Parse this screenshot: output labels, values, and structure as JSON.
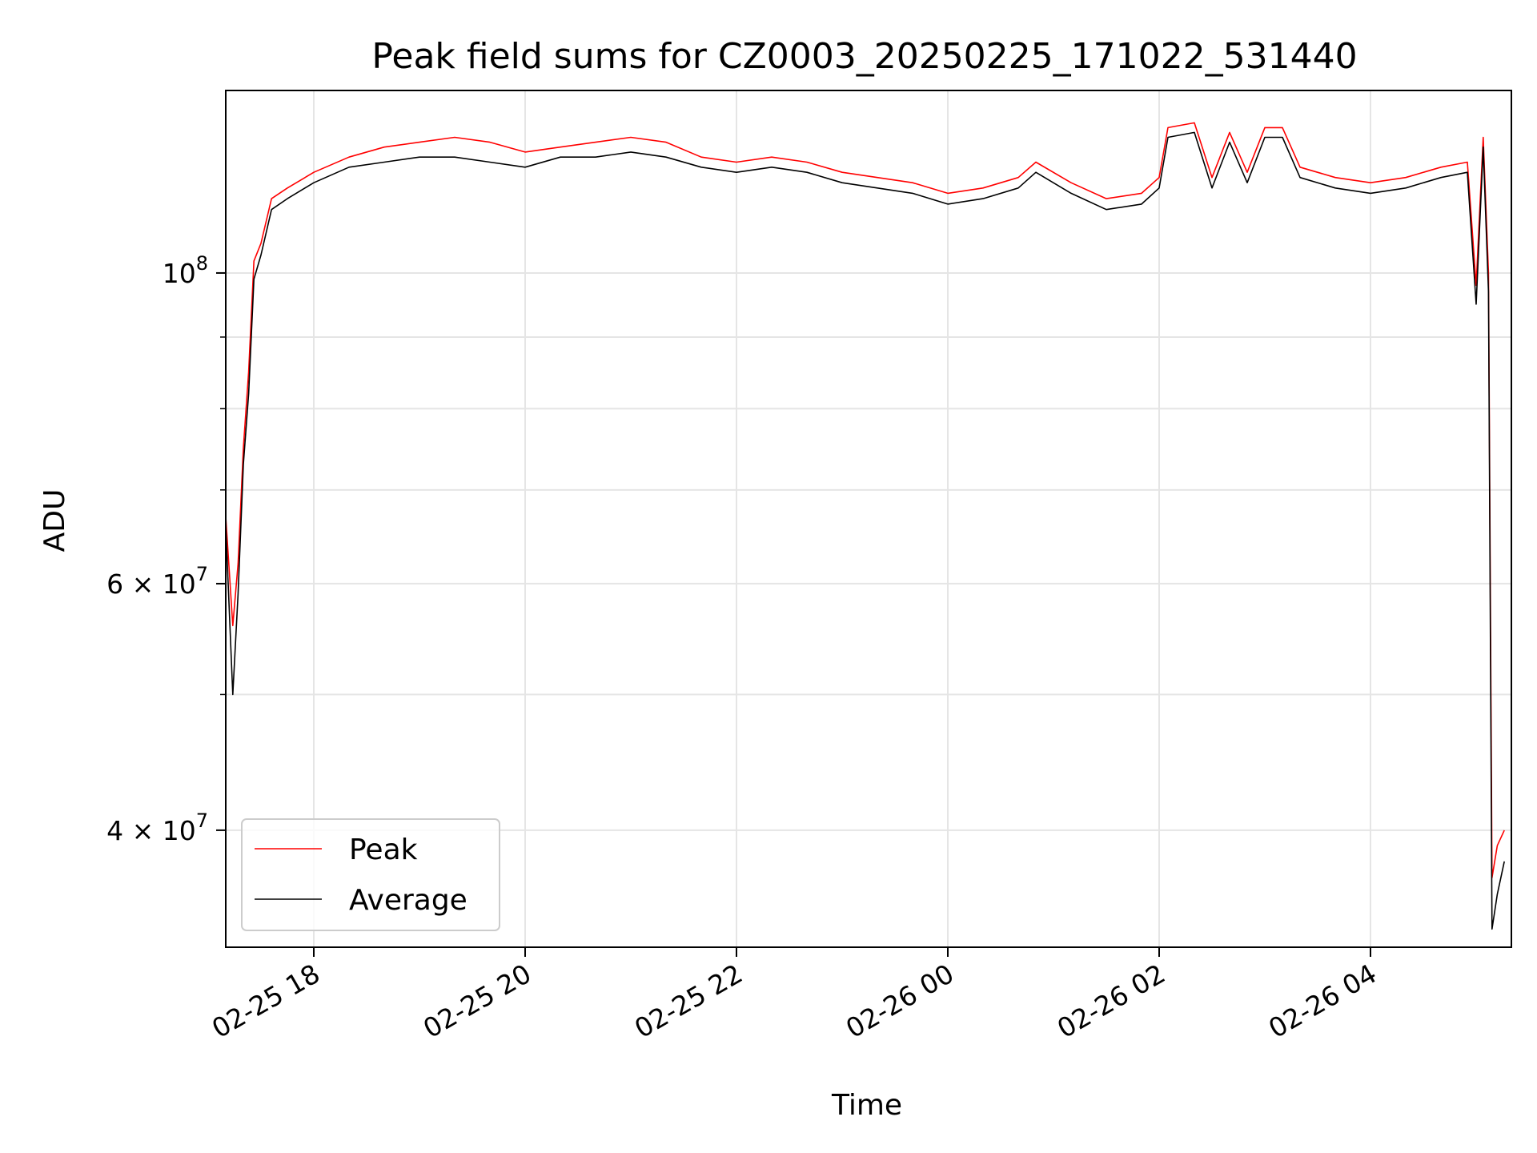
{
  "chart_data": {
    "type": "line",
    "title": "Peak field sums for CZ0003_20250225_171022_531440",
    "xlabel": "Time",
    "ylabel": "ADU",
    "y_scale": "log",
    "ylim": [
      33000000,
      135000000
    ],
    "xlim": [
      "2025-02-25 17:10",
      "2025-02-26 05:20"
    ],
    "grid": true,
    "legend_position": "lower-left",
    "x_ticks": [
      {
        "value": "2025-02-25 18:00",
        "label": "02-25 18"
      },
      {
        "value": "2025-02-25 20:00",
        "label": "02-25 20"
      },
      {
        "value": "2025-02-25 22:00",
        "label": "02-25 22"
      },
      {
        "value": "2025-02-26 00:00",
        "label": "02-26 00"
      },
      {
        "value": "2025-02-26 02:00",
        "label": "02-26 02"
      },
      {
        "value": "2025-02-26 04:00",
        "label": "02-26 04"
      }
    ],
    "y_ticks": [
      {
        "value": 100000000,
        "base": "10",
        "exp": "8"
      },
      {
        "value": 60000000,
        "base": "6 × 10",
        "exp": "7"
      },
      {
        "value": 40000000,
        "base": "4 × 10",
        "exp": "7"
      }
    ],
    "y_minor_ticks": [
      50000000,
      70000000,
      80000000,
      90000000
    ],
    "colors": {
      "peak": "#ff0000",
      "average": "#000000",
      "grid": "#e5e5e5"
    },
    "series": [
      {
        "name": "Peak",
        "color": "#ff0000",
        "points": [
          [
            "2025-02-25 17:10",
            67000000
          ],
          [
            "2025-02-25 17:14",
            56000000
          ],
          [
            "2025-02-25 17:17",
            62000000
          ],
          [
            "2025-02-25 17:20",
            75000000
          ],
          [
            "2025-02-25 17:23",
            85000000
          ],
          [
            "2025-02-25 17:26",
            102000000
          ],
          [
            "2025-02-25 17:30",
            105000000
          ],
          [
            "2025-02-25 17:36",
            113000000
          ],
          [
            "2025-02-25 17:45",
            115000000
          ],
          [
            "2025-02-25 18:00",
            118000000
          ],
          [
            "2025-02-25 18:20",
            121000000
          ],
          [
            "2025-02-25 18:40",
            123000000
          ],
          [
            "2025-02-25 19:00",
            124000000
          ],
          [
            "2025-02-25 19:20",
            125000000
          ],
          [
            "2025-02-25 19:40",
            124000000
          ],
          [
            "2025-02-25 20:00",
            122000000
          ],
          [
            "2025-02-25 20:20",
            123000000
          ],
          [
            "2025-02-25 20:40",
            124000000
          ],
          [
            "2025-02-25 21:00",
            125000000
          ],
          [
            "2025-02-25 21:20",
            124000000
          ],
          [
            "2025-02-25 21:40",
            121000000
          ],
          [
            "2025-02-25 22:00",
            120000000
          ],
          [
            "2025-02-25 22:20",
            121000000
          ],
          [
            "2025-02-25 22:40",
            120000000
          ],
          [
            "2025-02-25 23:00",
            118000000
          ],
          [
            "2025-02-25 23:20",
            117000000
          ],
          [
            "2025-02-25 23:40",
            116000000
          ],
          [
            "2025-02-26 00:00",
            114000000
          ],
          [
            "2025-02-26 00:20",
            115000000
          ],
          [
            "2025-02-26 00:40",
            117000000
          ],
          [
            "2025-02-26 00:50",
            120000000
          ],
          [
            "2025-02-26 01:10",
            116000000
          ],
          [
            "2025-02-26 01:30",
            113000000
          ],
          [
            "2025-02-26 01:50",
            114000000
          ],
          [
            "2025-02-26 02:00",
            117000000
          ],
          [
            "2025-02-26 02:05",
            127000000
          ],
          [
            "2025-02-26 02:20",
            128000000
          ],
          [
            "2025-02-26 02:30",
            117000000
          ],
          [
            "2025-02-26 02:40",
            126000000
          ],
          [
            "2025-02-26 02:50",
            118000000
          ],
          [
            "2025-02-26 03:00",
            127000000
          ],
          [
            "2025-02-26 03:10",
            127000000
          ],
          [
            "2025-02-26 03:20",
            119000000
          ],
          [
            "2025-02-26 03:40",
            117000000
          ],
          [
            "2025-02-26 04:00",
            116000000
          ],
          [
            "2025-02-26 04:20",
            117000000
          ],
          [
            "2025-02-26 04:40",
            119000000
          ],
          [
            "2025-02-26 04:55",
            120000000
          ],
          [
            "2025-02-26 05:00",
            98000000
          ],
          [
            "2025-02-26 05:04",
            125000000
          ],
          [
            "2025-02-26 05:07",
            100000000
          ],
          [
            "2025-02-26 05:09",
            37000000
          ],
          [
            "2025-02-26 05:12",
            39000000
          ],
          [
            "2025-02-26 05:16",
            40000000
          ]
        ]
      },
      {
        "name": "Average",
        "color": "#000000",
        "points": [
          [
            "2025-02-25 17:10",
            66000000
          ],
          [
            "2025-02-25 17:14",
            50000000
          ],
          [
            "2025-02-25 17:17",
            59000000
          ],
          [
            "2025-02-25 17:20",
            73000000
          ],
          [
            "2025-02-25 17:23",
            82000000
          ],
          [
            "2025-02-25 17:26",
            99000000
          ],
          [
            "2025-02-25 17:30",
            103000000
          ],
          [
            "2025-02-25 17:36",
            111000000
          ],
          [
            "2025-02-25 17:45",
            113000000
          ],
          [
            "2025-02-25 18:00",
            116000000
          ],
          [
            "2025-02-25 18:20",
            119000000
          ],
          [
            "2025-02-25 18:40",
            120000000
          ],
          [
            "2025-02-25 19:00",
            121000000
          ],
          [
            "2025-02-25 19:20",
            121000000
          ],
          [
            "2025-02-25 19:40",
            120000000
          ],
          [
            "2025-02-25 20:00",
            119000000
          ],
          [
            "2025-02-25 20:20",
            121000000
          ],
          [
            "2025-02-25 20:40",
            121000000
          ],
          [
            "2025-02-25 21:00",
            122000000
          ],
          [
            "2025-02-25 21:20",
            121000000
          ],
          [
            "2025-02-25 21:40",
            119000000
          ],
          [
            "2025-02-25 22:00",
            118000000
          ],
          [
            "2025-02-25 22:20",
            119000000
          ],
          [
            "2025-02-25 22:40",
            118000000
          ],
          [
            "2025-02-25 23:00",
            116000000
          ],
          [
            "2025-02-25 23:20",
            115000000
          ],
          [
            "2025-02-25 23:40",
            114000000
          ],
          [
            "2025-02-26 00:00",
            112000000
          ],
          [
            "2025-02-26 00:20",
            113000000
          ],
          [
            "2025-02-26 00:40",
            115000000
          ],
          [
            "2025-02-26 00:50",
            118000000
          ],
          [
            "2025-02-26 01:10",
            114000000
          ],
          [
            "2025-02-26 01:30",
            111000000
          ],
          [
            "2025-02-26 01:50",
            112000000
          ],
          [
            "2025-02-26 02:00",
            115000000
          ],
          [
            "2025-02-26 02:05",
            125000000
          ],
          [
            "2025-02-26 02:20",
            126000000
          ],
          [
            "2025-02-26 02:30",
            115000000
          ],
          [
            "2025-02-26 02:40",
            124000000
          ],
          [
            "2025-02-26 02:50",
            116000000
          ],
          [
            "2025-02-26 03:00",
            125000000
          ],
          [
            "2025-02-26 03:10",
            125000000
          ],
          [
            "2025-02-26 03:20",
            117000000
          ],
          [
            "2025-02-26 03:40",
            115000000
          ],
          [
            "2025-02-26 04:00",
            114000000
          ],
          [
            "2025-02-26 04:20",
            115000000
          ],
          [
            "2025-02-26 04:40",
            117000000
          ],
          [
            "2025-02-26 04:55",
            118000000
          ],
          [
            "2025-02-26 05:00",
            95000000
          ],
          [
            "2025-02-26 05:04",
            123000000
          ],
          [
            "2025-02-26 05:07",
            97000000
          ],
          [
            "2025-02-26 05:09",
            34000000
          ],
          [
            "2025-02-26 05:12",
            36000000
          ],
          [
            "2025-02-26 05:16",
            38000000
          ]
        ]
      }
    ]
  }
}
